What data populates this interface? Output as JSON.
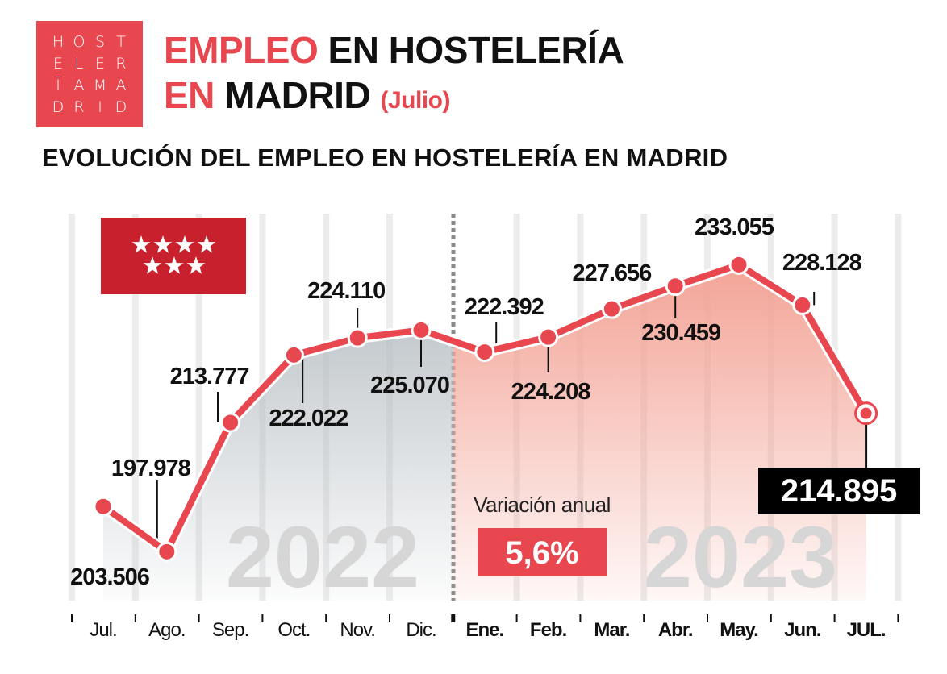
{
  "logo": {
    "letters": [
      "H",
      "O",
      "S",
      "T",
      "E",
      "L",
      "E",
      "R",
      "Ī",
      "A",
      "M",
      "A",
      "D",
      "R",
      "I",
      "D"
    ],
    "text": "HOSTELERĪAMADRID"
  },
  "header": {
    "title_part1": "EMPLEO",
    "title_part2": " EN HOSTELERÍA",
    "title_part3": "EN",
    "title_part4": " MADRID ",
    "title_month": "(Julio)"
  },
  "chart_data": {
    "type": "line",
    "title": "EVOLUCIÓN DEL EMPLEO EN HOSTELERÍA EN MADRID",
    "categories": [
      "Jul.",
      "Ago.",
      "Sep.",
      "Oct.",
      "Nov.",
      "Dic.",
      "Ene.",
      "Feb.",
      "Mar.",
      "Abr.",
      "May.",
      "Jun.",
      "JUL."
    ],
    "values": [
      203.506,
      197.978,
      213.777,
      222.022,
      224.11,
      225.07,
      222.392,
      224.208,
      227.656,
      230.459,
      233.055,
      228.128,
      214.895
    ],
    "value_labels": [
      "203.506",
      "197.978",
      "213.777",
      "222.022",
      "224.110",
      "225.070",
      "222.392",
      "224.208",
      "227.656",
      "230.459",
      "233.055",
      "228.128",
      "214.895"
    ],
    "years": [
      "2022",
      "2023"
    ],
    "ylim": [
      192,
      239.3
    ],
    "grid": "vertical",
    "annotation": {
      "label": "Variación anual",
      "value": "5,6%"
    },
    "colors": {
      "line": "#e8474f",
      "area_2022": "#b7bec3",
      "area_2023": "#f3a497",
      "accent": "#e8474f",
      "flag": "#c8202d"
    }
  }
}
